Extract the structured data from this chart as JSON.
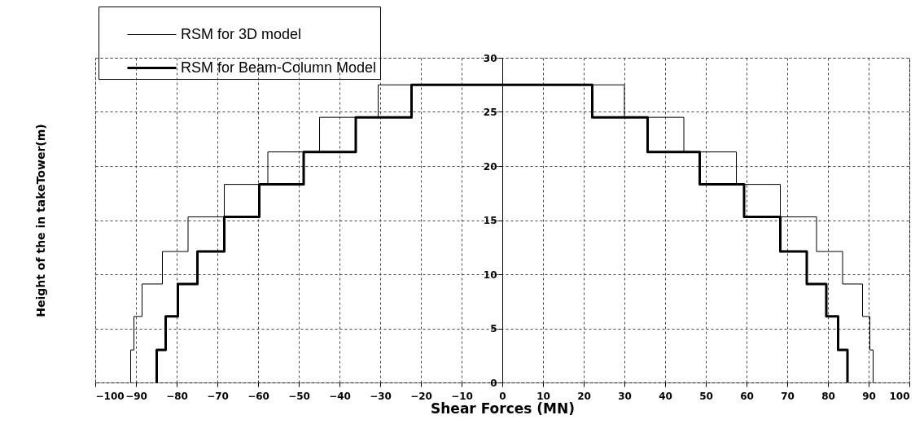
{
  "chart_data": {
    "type": "line",
    "xlabel": "Shear Forces (MN)",
    "ylabel": "Height of the in takeTower(m)",
    "xlim": [
      -100,
      100
    ],
    "xticks": [
      -100,
      -90,
      -80,
      -70,
      -60,
      -50,
      -40,
      -30,
      -20,
      -10,
      0,
      10,
      20,
      30,
      40,
      50,
      60,
      70,
      80,
      90,
      100
    ],
    "ylim": [
      0,
      30
    ],
    "yticks": [
      0,
      5,
      10,
      15,
      20,
      25,
      30
    ],
    "grid": true,
    "legend": "top left",
    "line_style": "solid",
    "series": [
      {
        "name": "RSM for 3D model",
        "color": "#000000",
        "x": [
          -91.3,
          -91.3,
          -90.5,
          -90.5,
          -88.5,
          -88.5,
          -83.5,
          -83.5,
          -77.2,
          -77.2,
          -68.3,
          -68.3,
          -57.6,
          -57.6,
          -44.9,
          -44.9,
          -30.5,
          -30.5,
          30,
          30,
          44.6,
          44.6,
          57.5,
          57.5,
          68.3,
          68.3,
          77.2,
          77.2,
          83.6,
          83.6,
          88.5,
          88.5,
          90.3,
          90.3,
          91.1,
          91.1
        ],
        "values": [
          0,
          3,
          3,
          6.1,
          6.1,
          9.1,
          9.1,
          12.1,
          12.1,
          15.3,
          15.3,
          18.3,
          18.3,
          21.3,
          21.3,
          24.5,
          24.5,
          27.5,
          27.5,
          24.5,
          24.5,
          21.3,
          21.3,
          18.3,
          18.3,
          15.3,
          15.3,
          12.1,
          12.1,
          9.1,
          9.1,
          6.1,
          6.1,
          3,
          3,
          0
        ]
      },
      {
        "name": "RSM for Beam-Column Model",
        "color": "#000000",
        "x": [
          -84.9,
          -84.9,
          -82.7,
          -82.7,
          -79.7,
          -79.7,
          -74.9,
          -74.9,
          -68.3,
          -68.3,
          -59.7,
          -59.7,
          -48.8,
          -48.8,
          -36,
          -36,
          -22.3,
          -22.3,
          22.1,
          22.1,
          35.7,
          35.7,
          48.5,
          48.5,
          59.4,
          59.4,
          68.3,
          68.3,
          74.8,
          74.8,
          79.6,
          79.6,
          82.5,
          82.5,
          84.8,
          84.8
        ],
        "values": [
          0,
          3,
          3,
          6.1,
          6.1,
          9.1,
          9.1,
          12.1,
          12.1,
          15.3,
          15.3,
          18.3,
          18.3,
          21.3,
          21.3,
          24.5,
          24.5,
          27.5,
          27.5,
          24.5,
          24.5,
          21.3,
          21.3,
          18.3,
          18.3,
          15.3,
          15.3,
          12.1,
          12.1,
          9.1,
          9.1,
          6.1,
          6.1,
          3,
          3,
          0
        ]
      }
    ]
  }
}
